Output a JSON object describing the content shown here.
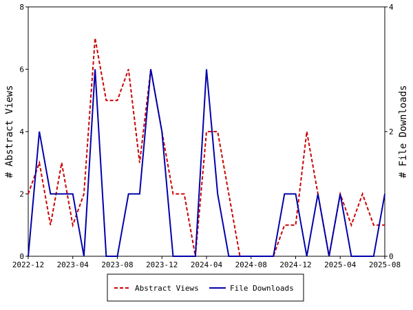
{
  "chart_data": {
    "type": "line",
    "categories": [
      "2022-12",
      null,
      null,
      null,
      "2023-04",
      null,
      null,
      null,
      "2023-08",
      null,
      null,
      null,
      "2023-12",
      null,
      null,
      null,
      "2024-04",
      null,
      null,
      null,
      "2024-08",
      null,
      null,
      null,
      "2024-12",
      null,
      null,
      null,
      "2025-04",
      null,
      null,
      null,
      "2025-08"
    ],
    "y_label": "# Abstract Views",
    "y2_label": "# File Downloads",
    "ylim": [
      0,
      8
    ],
    "yticks": [
      0,
      2,
      4,
      6,
      8
    ],
    "y2lim": [
      0,
      4
    ],
    "y2ticks": [
      0,
      2,
      4
    ],
    "legend": "bottom",
    "series": [
      {
        "name": "Abstract Views",
        "color": "#cc0000",
        "dashed": true,
        "values": [
          2,
          3,
          1,
          3,
          1,
          2,
          7,
          5,
          5,
          6,
          3,
          6,
          4,
          2,
          2,
          0,
          4,
          4,
          2,
          0,
          0,
          0,
          0,
          1,
          1,
          4,
          2,
          0,
          2,
          1,
          2,
          1,
          1
        ]
      },
      {
        "name": "File Downloads",
        "color": "#0000aa",
        "axis": "y2",
        "values": [
          0,
          2,
          1,
          1,
          1,
          0,
          3,
          0,
          0,
          1,
          1,
          3,
          2,
          0,
          0,
          0,
          3,
          1,
          0,
          0,
          0,
          0,
          0,
          1,
          1,
          0,
          1,
          0,
          1,
          0,
          0,
          0,
          1
        ]
      }
    ]
  }
}
